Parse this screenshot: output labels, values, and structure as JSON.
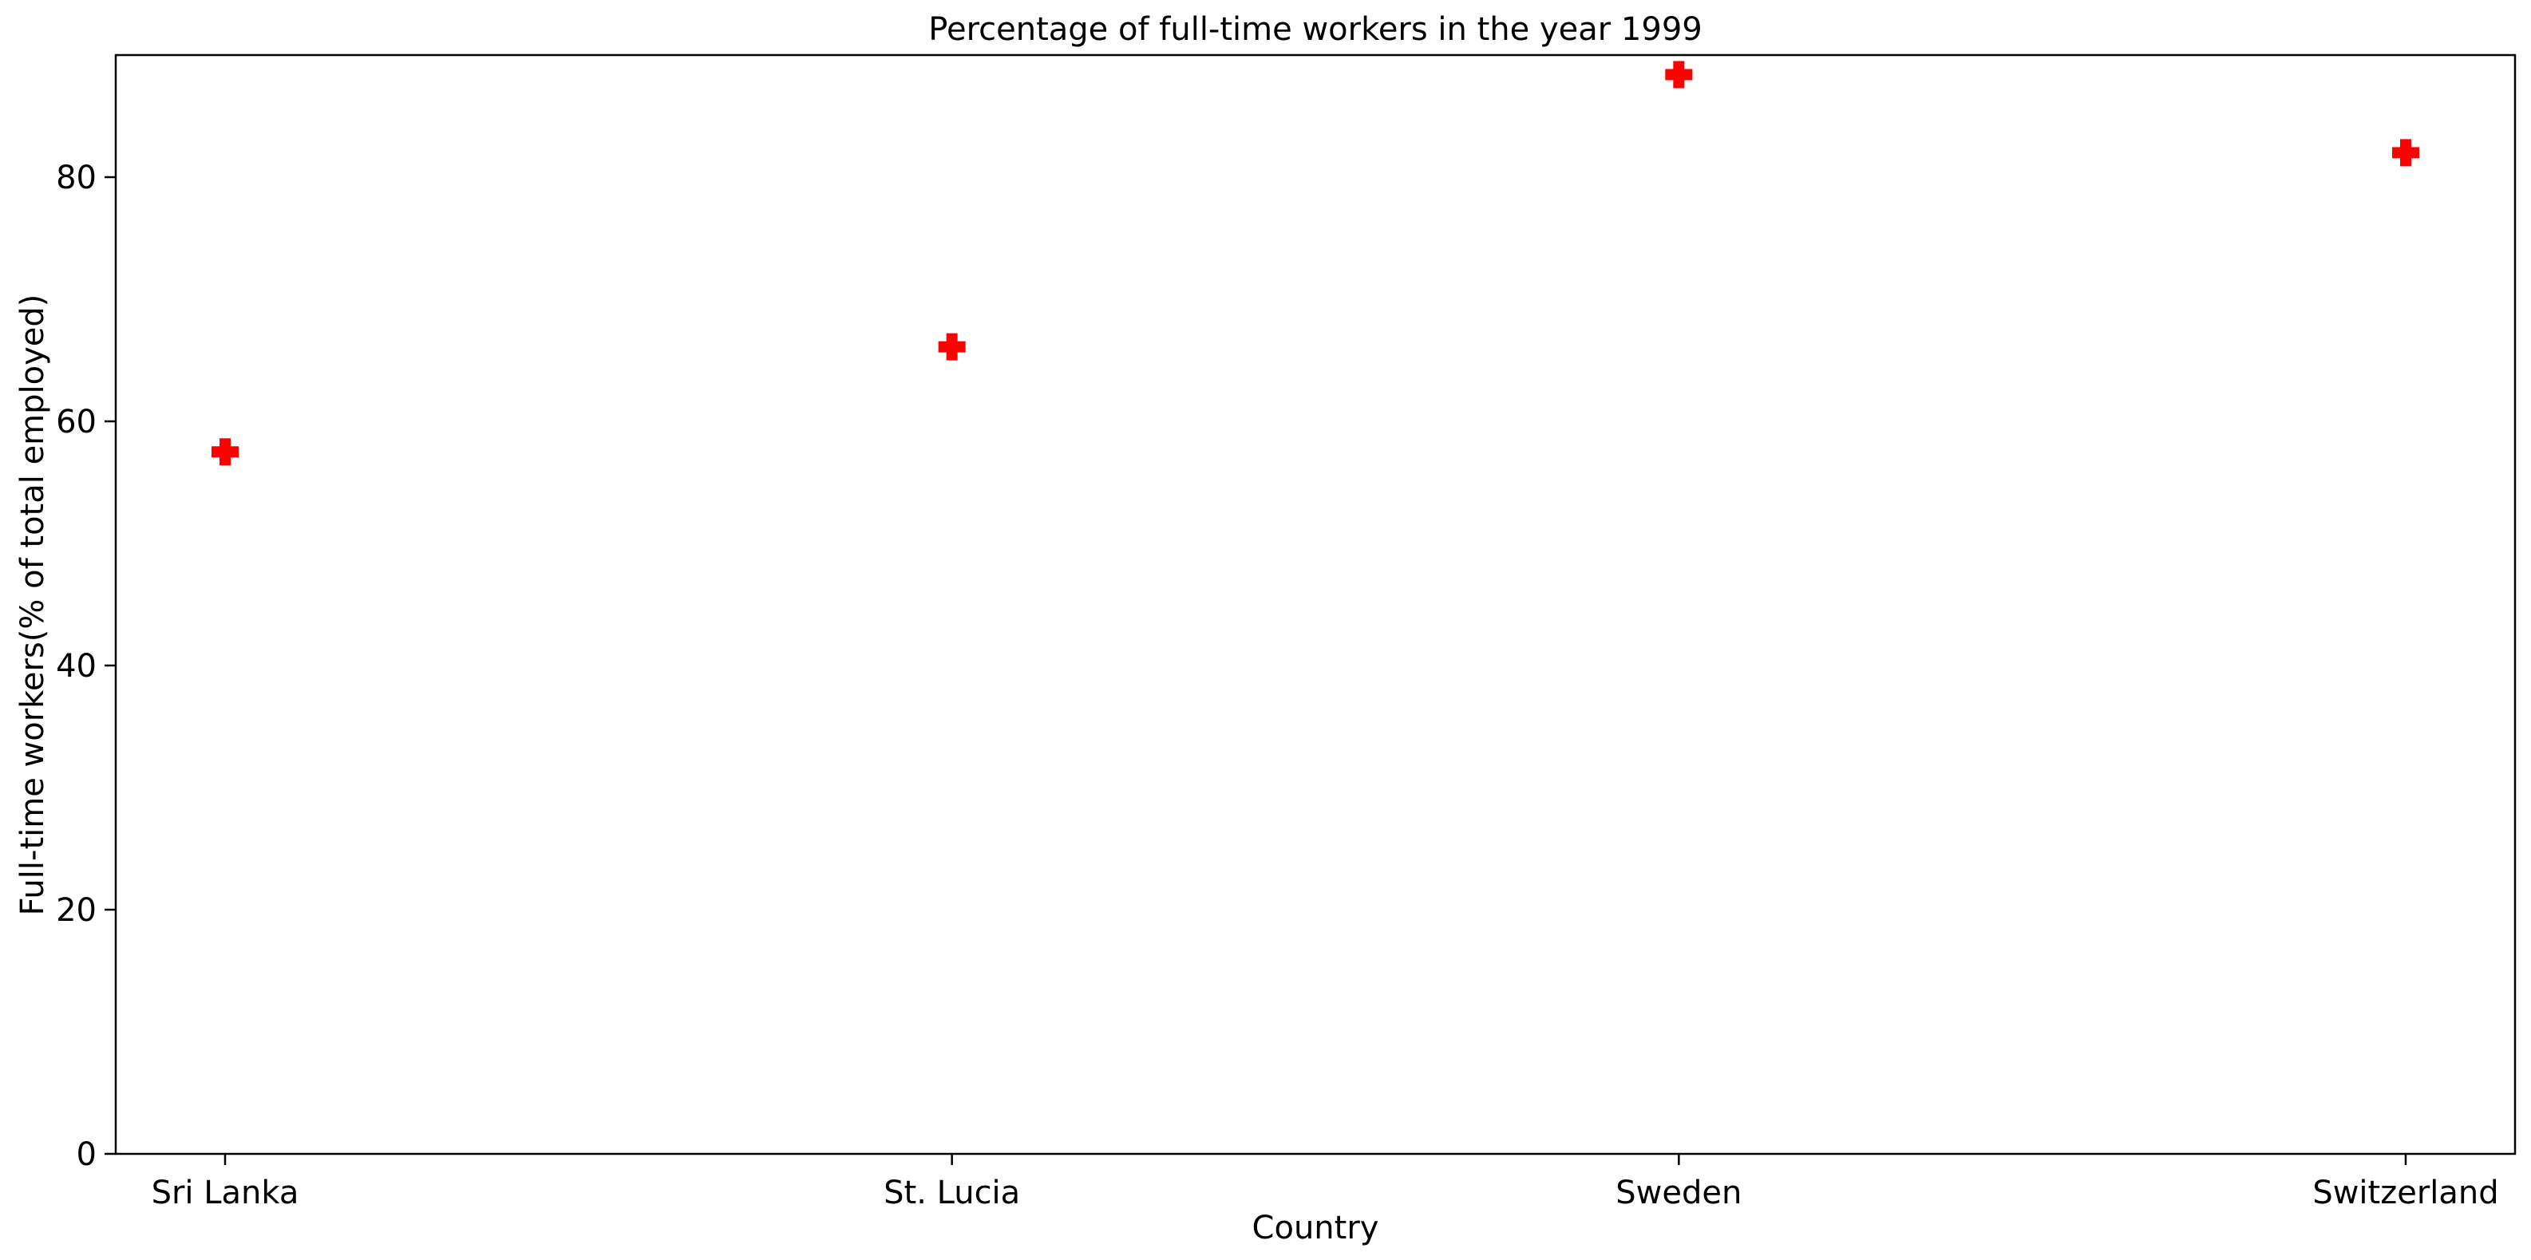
{
  "chart_data": {
    "type": "scatter",
    "title": "Percentage of full-time workers in the year 1999",
    "xlabel": "Country",
    "ylabel": "Full-time workers(% of total employed)",
    "categories": [
      "Sri Lanka",
      "St. Lucia",
      "Sweden",
      "Switzerland"
    ],
    "series": [
      {
        "values": [
          57.5,
          66.1,
          88.4,
          82.0
        ],
        "color": "#ff0000",
        "marker": "plus-filled"
      }
    ],
    "ylim": [
      0,
      90
    ],
    "yticks": [
      0,
      20,
      40,
      60,
      80
    ],
    "grid": false,
    "legend": "none"
  }
}
